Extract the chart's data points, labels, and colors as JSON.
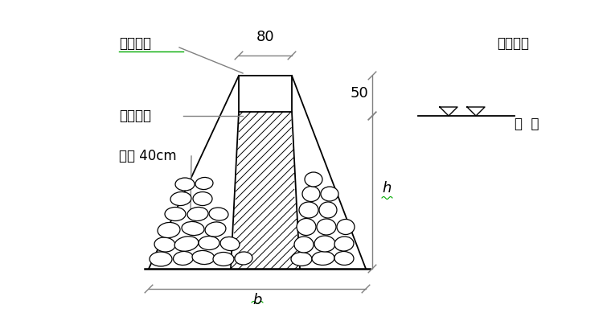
{
  "bg_color": "#ffffff",
  "line_color": "#000000",
  "gray_color": "#808080",
  "label_草包叠排": "草包叠排",
  "label_防渗心墙": "防渗心墙",
  "label_宽度": "宽度 40cm",
  "label_80": "80",
  "label_50": "50",
  "label_h": "h",
  "label_b": "b",
  "label_围堰顶高": "围堰顶高",
  "label_水位": "水  位",
  "green_color": "#00aa00",
  "figsize": [
    7.6,
    3.94
  ],
  "dpi": 100
}
